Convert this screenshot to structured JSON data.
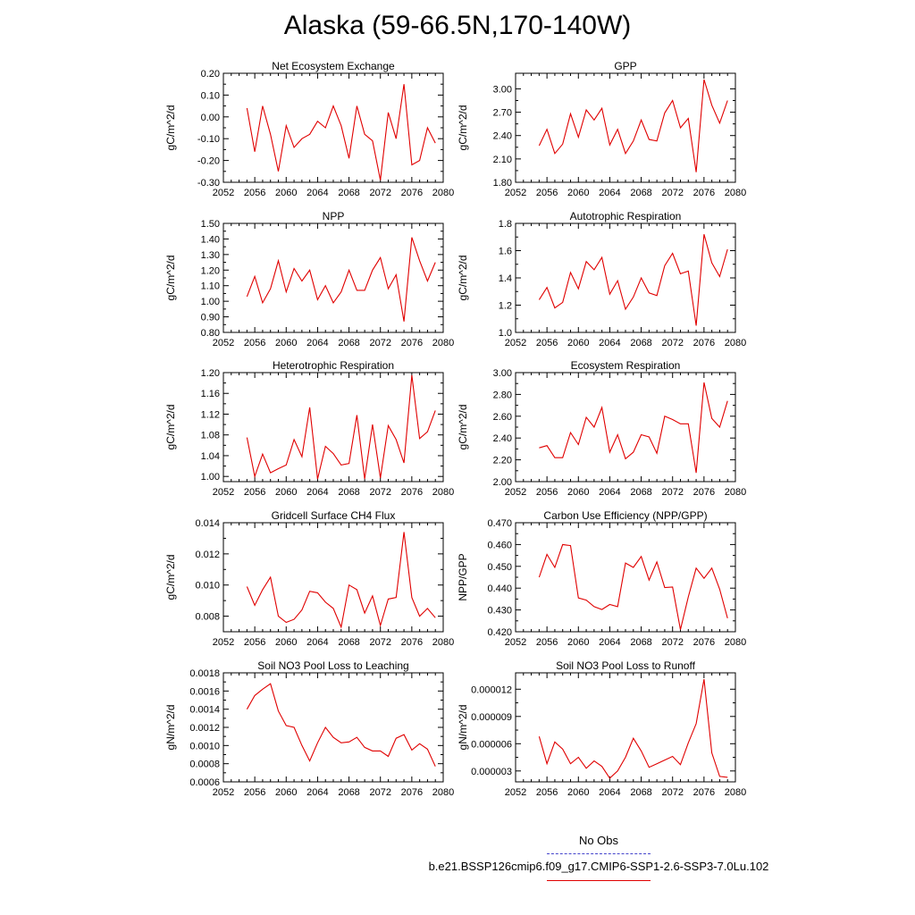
{
  "title": "Alaska (59-66.5N,170-140W)",
  "colors": {
    "data_line": "#e00000",
    "obs_line": "#4444cc",
    "axis": "#000000"
  },
  "legend": [
    {
      "label": "No Obs",
      "style": "dashed",
      "color": "#4444cc"
    },
    {
      "label": "b.e21.BSSP126cmip6.f09_g17.CMIP6-SSP1-2.6-SSP3-7.0Lu.102",
      "style": "solid",
      "color": "#e00000"
    }
  ],
  "chart_data": [
    {
      "type": "line",
      "title": "Net Ecosystem Exchange",
      "ylabel": "gC/m^2/d",
      "xlabel": "",
      "xlim": [
        2052,
        2080
      ],
      "ylim": [
        -0.3,
        0.2
      ],
      "xticks": [
        2052,
        2056,
        2060,
        2064,
        2068,
        2072,
        2076,
        2080
      ],
      "yticks": [
        -0.3,
        -0.2,
        -0.1,
        0.0,
        0.1,
        0.2
      ],
      "ytick_labels": [
        "-0.30",
        "-0.20",
        "-0.10",
        "0.00",
        "0.10",
        "0.20"
      ],
      "x": [
        2055,
        2056,
        2057,
        2058,
        2059,
        2060,
        2061,
        2062,
        2063,
        2064,
        2065,
        2066,
        2067,
        2068,
        2069,
        2070,
        2071,
        2072,
        2073,
        2074,
        2075,
        2076,
        2077,
        2078,
        2079
      ],
      "values": [
        0.04,
        -0.16,
        0.05,
        -0.08,
        -0.25,
        -0.04,
        -0.14,
        -0.1,
        -0.08,
        -0.02,
        -0.05,
        0.05,
        -0.04,
        -0.19,
        0.05,
        -0.08,
        -0.11,
        -0.29,
        0.02,
        -0.1,
        0.15,
        -0.22,
        -0.2,
        -0.05,
        -0.12
      ]
    },
    {
      "type": "line",
      "title": "GPP",
      "ylabel": "gC/m^2/d",
      "xlabel": "",
      "xlim": [
        2052,
        2080
      ],
      "ylim": [
        1.8,
        3.2
      ],
      "xticks": [
        2052,
        2056,
        2060,
        2064,
        2068,
        2072,
        2076,
        2080
      ],
      "yticks": [
        1.8,
        2.1,
        2.4,
        2.7,
        3.0
      ],
      "ytick_labels": [
        "1.80",
        "2.10",
        "2.40",
        "2.70",
        "3.00"
      ],
      "x": [
        2055,
        2056,
        2057,
        2058,
        2059,
        2060,
        2061,
        2062,
        2063,
        2064,
        2065,
        2066,
        2067,
        2068,
        2069,
        2070,
        2071,
        2072,
        2073,
        2074,
        2075,
        2076,
        2077,
        2078,
        2079
      ],
      "values": [
        2.27,
        2.48,
        2.17,
        2.29,
        2.68,
        2.38,
        2.73,
        2.6,
        2.75,
        2.28,
        2.48,
        2.17,
        2.33,
        2.6,
        2.35,
        2.33,
        2.69,
        2.85,
        2.5,
        2.62,
        1.93,
        3.12,
        2.79,
        2.56,
        2.85
      ]
    },
    {
      "type": "line",
      "title": "NPP",
      "ylabel": "gC/m^2/d",
      "xlabel": "",
      "xlim": [
        2052,
        2080
      ],
      "ylim": [
        0.8,
        1.5
      ],
      "xticks": [
        2052,
        2056,
        2060,
        2064,
        2068,
        2072,
        2076,
        2080
      ],
      "yticks": [
        0.8,
        0.9,
        1.0,
        1.1,
        1.2,
        1.3,
        1.4,
        1.5
      ],
      "ytick_labels": [
        "0.80",
        "0.90",
        "1.00",
        "1.10",
        "1.20",
        "1.30",
        "1.40",
        "1.50"
      ],
      "x": [
        2055,
        2056,
        2057,
        2058,
        2059,
        2060,
        2061,
        2062,
        2063,
        2064,
        2065,
        2066,
        2067,
        2068,
        2069,
        2070,
        2071,
        2072,
        2073,
        2074,
        2075,
        2076,
        2077,
        2078,
        2079
      ],
      "values": [
        1.03,
        1.16,
        0.99,
        1.08,
        1.26,
        1.06,
        1.21,
        1.13,
        1.2,
        1.01,
        1.1,
        0.99,
        1.06,
        1.2,
        1.07,
        1.07,
        1.2,
        1.28,
        1.08,
        1.17,
        0.87,
        1.41,
        1.26,
        1.13,
        1.25
      ]
    },
    {
      "type": "line",
      "title": "Autotrophic Respiration",
      "ylabel": "gC/m^2/d",
      "xlabel": "",
      "xlim": [
        2052,
        2080
      ],
      "ylim": [
        1.0,
        1.8
      ],
      "xticks": [
        2052,
        2056,
        2060,
        2064,
        2068,
        2072,
        2076,
        2080
      ],
      "yticks": [
        1.0,
        1.2,
        1.4,
        1.6,
        1.8
      ],
      "ytick_labels": [
        "1.0",
        "1.2",
        "1.4",
        "1.6",
        "1.8"
      ],
      "x": [
        2055,
        2056,
        2057,
        2058,
        2059,
        2060,
        2061,
        2062,
        2063,
        2064,
        2065,
        2066,
        2067,
        2068,
        2069,
        2070,
        2071,
        2072,
        2073,
        2074,
        2075,
        2076,
        2077,
        2078,
        2079
      ],
      "values": [
        1.24,
        1.33,
        1.18,
        1.22,
        1.44,
        1.32,
        1.52,
        1.46,
        1.55,
        1.28,
        1.38,
        1.17,
        1.26,
        1.4,
        1.29,
        1.27,
        1.49,
        1.58,
        1.43,
        1.45,
        1.05,
        1.72,
        1.51,
        1.41,
        1.61
      ]
    },
    {
      "type": "line",
      "title": "Heterotrophic Respiration",
      "ylabel": "gC/m^2/d",
      "xlabel": "",
      "xlim": [
        2052,
        2080
      ],
      "ylim": [
        0.99,
        1.2
      ],
      "xticks": [
        2052,
        2056,
        2060,
        2064,
        2068,
        2072,
        2076,
        2080
      ],
      "yticks": [
        1.0,
        1.04,
        1.08,
        1.12,
        1.16,
        1.2
      ],
      "ytick_labels": [
        "1.00",
        "1.04",
        "1.08",
        "1.12",
        "1.16",
        "1.20"
      ],
      "x": [
        2055,
        2056,
        2057,
        2058,
        2059,
        2060,
        2061,
        2062,
        2063,
        2064,
        2065,
        2066,
        2067,
        2068,
        2069,
        2070,
        2071,
        2072,
        2073,
        2074,
        2075,
        2076,
        2077,
        2078,
        2079
      ],
      "values": [
        1.075,
        1.0,
        1.043,
        1.007,
        1.015,
        1.022,
        1.071,
        1.038,
        1.133,
        0.995,
        1.058,
        1.044,
        1.022,
        1.025,
        1.118,
        0.995,
        1.1,
        0.997,
        1.098,
        1.071,
        1.026,
        1.195,
        1.073,
        1.086,
        1.127
      ]
    },
    {
      "type": "line",
      "title": "Ecosystem Respiration",
      "ylabel": "gC/m^2/d",
      "xlabel": "",
      "xlim": [
        2052,
        2080
      ],
      "ylim": [
        2.0,
        3.0
      ],
      "xticks": [
        2052,
        2056,
        2060,
        2064,
        2068,
        2072,
        2076,
        2080
      ],
      "yticks": [
        2.0,
        2.2,
        2.4,
        2.6,
        2.8,
        3.0
      ],
      "ytick_labels": [
        "2.00",
        "2.20",
        "2.40",
        "2.60",
        "2.80",
        "3.00"
      ],
      "x": [
        2055,
        2056,
        2057,
        2058,
        2059,
        2060,
        2061,
        2062,
        2063,
        2064,
        2065,
        2066,
        2067,
        2068,
        2069,
        2070,
        2071,
        2072,
        2073,
        2074,
        2075,
        2076,
        2077,
        2078,
        2079
      ],
      "values": [
        2.31,
        2.33,
        2.22,
        2.22,
        2.45,
        2.34,
        2.59,
        2.5,
        2.68,
        2.27,
        2.43,
        2.21,
        2.27,
        2.43,
        2.41,
        2.26,
        2.6,
        2.57,
        2.53,
        2.53,
        2.08,
        2.91,
        2.58,
        2.5,
        2.74
      ]
    },
    {
      "type": "line",
      "title": "Gridcell Surface CH4 Flux",
      "ylabel": "gC/m^2/d",
      "xlabel": "",
      "xlim": [
        2052,
        2080
      ],
      "ylim": [
        0.007,
        0.014
      ],
      "xticks": [
        2052,
        2056,
        2060,
        2064,
        2068,
        2072,
        2076,
        2080
      ],
      "yticks": [
        0.008,
        0.01,
        0.012,
        0.014
      ],
      "ytick_labels": [
        "0.008",
        "0.010",
        "0.012",
        "0.014"
      ],
      "x": [
        2055,
        2056,
        2057,
        2058,
        2059,
        2060,
        2061,
        2062,
        2063,
        2064,
        2065,
        2066,
        2067,
        2068,
        2069,
        2070,
        2071,
        2072,
        2073,
        2074,
        2075,
        2076,
        2077,
        2078,
        2079
      ],
      "values": [
        0.0099,
        0.0087,
        0.0097,
        0.0105,
        0.008,
        0.0076,
        0.0078,
        0.0084,
        0.0096,
        0.0095,
        0.0089,
        0.0085,
        0.0073,
        0.01,
        0.0097,
        0.0082,
        0.0093,
        0.0074,
        0.0091,
        0.0092,
        0.0134,
        0.0092,
        0.008,
        0.0085,
        0.0079
      ]
    },
    {
      "type": "line",
      "title": "Carbon Use Efficiency (NPP/GPP)",
      "ylabel": "NPP/GPP",
      "xlabel": "",
      "xlim": [
        2052,
        2080
      ],
      "ylim": [
        0.42,
        0.47
      ],
      "xticks": [
        2052,
        2056,
        2060,
        2064,
        2068,
        2072,
        2076,
        2080
      ],
      "yticks": [
        0.42,
        0.43,
        0.44,
        0.45,
        0.46,
        0.47
      ],
      "ytick_labels": [
        "0.420",
        "0.430",
        "0.440",
        "0.450",
        "0.460",
        "0.470"
      ],
      "x": [
        2055,
        2056,
        2057,
        2058,
        2059,
        2060,
        2061,
        2062,
        2063,
        2064,
        2065,
        2066,
        2067,
        2068,
        2069,
        2070,
        2071,
        2072,
        2073,
        2074,
        2075,
        2076,
        2077,
        2078,
        2079
      ],
      "values": [
        0.445,
        0.4555,
        0.4495,
        0.46,
        0.4595,
        0.4355,
        0.4345,
        0.4315,
        0.4302,
        0.4325,
        0.4315,
        0.4515,
        0.4495,
        0.4545,
        0.4437,
        0.452,
        0.4403,
        0.4405,
        0.421,
        0.436,
        0.4492,
        0.4445,
        0.4492,
        0.4395,
        0.4262
      ]
    },
    {
      "type": "line",
      "title": "Soil NO3 Pool Loss to Leaching",
      "ylabel": "gN/m^2/d",
      "xlabel": "",
      "xlim": [
        2052,
        2080
      ],
      "ylim": [
        0.0006,
        0.0018
      ],
      "xticks": [
        2052,
        2056,
        2060,
        2064,
        2068,
        2072,
        2076,
        2080
      ],
      "yticks": [
        0.0006,
        0.0008,
        0.001,
        0.0012,
        0.0014,
        0.0016,
        0.0018
      ],
      "ytick_labels": [
        "0.0006",
        "0.0008",
        "0.0010",
        "0.0012",
        "0.0014",
        "0.0016",
        "0.0018"
      ],
      "x": [
        2055,
        2056,
        2057,
        2058,
        2059,
        2060,
        2061,
        2062,
        2063,
        2064,
        2065,
        2066,
        2067,
        2068,
        2069,
        2070,
        2071,
        2072,
        2073,
        2074,
        2075,
        2076,
        2077,
        2078,
        2079
      ],
      "values": [
        0.0014,
        0.00155,
        0.00162,
        0.00168,
        0.00138,
        0.00122,
        0.0012,
        0.001,
        0.00083,
        0.00103,
        0.0012,
        0.00109,
        0.00103,
        0.00104,
        0.00109,
        0.00098,
        0.00094,
        0.00094,
        0.00088,
        0.00108,
        0.00112,
        0.00095,
        0.00102,
        0.00096,
        0.00077
      ]
    },
    {
      "type": "line",
      "title": "Soil NO3 Pool Loss to Runoff",
      "ylabel": "gN/m^2/d",
      "xlabel": "",
      "xlim": [
        2052,
        2080
      ],
      "ylim": [
        1.8e-06,
        1.38e-05
      ],
      "xticks": [
        2052,
        2056,
        2060,
        2064,
        2068,
        2072,
        2076,
        2080
      ],
      "yticks": [
        3e-06,
        6e-06,
        9e-06,
        1.2e-05
      ],
      "ytick_labels": [
        "0.000003",
        "0.000006",
        "0.000009",
        "0.000012"
      ],
      "x": [
        2055,
        2056,
        2057,
        2058,
        2059,
        2060,
        2061,
        2062,
        2063,
        2064,
        2065,
        2066,
        2067,
        2068,
        2069,
        2070,
        2071,
        2072,
        2073,
        2074,
        2075,
        2076,
        2077,
        2078,
        2079
      ],
      "values": [
        6.8e-06,
        3.8e-06,
        6.2e-06,
        5.4e-06,
        3.8e-06,
        4.5e-06,
        3.3e-06,
        4.1e-06,
        3.5e-06,
        2.2e-06,
        3e-06,
        4.5e-06,
        6.6e-06,
        5.2e-06,
        3.4e-06,
        3.8e-06,
        4.2e-06,
        4.6e-06,
        3.7e-06,
        6.1e-06,
        8.2e-06,
        1.31e-05,
        5e-06,
        2.4e-06,
        2.3e-06
      ]
    }
  ]
}
